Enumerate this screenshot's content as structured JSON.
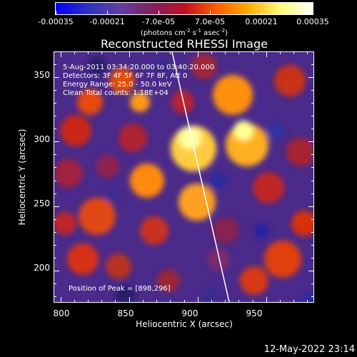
{
  "colorbar": {
    "tick_labels": [
      "-0.00035",
      "-0.00021",
      "-7.0e-05",
      "7.0e-05",
      "0.00021",
      "0.00035"
    ],
    "units_prefix": "(photons cm",
    "units_sup1": "-2",
    "units_mid1": " s",
    "units_sup2": "-1",
    "units_mid2": " asec",
    "units_sup3": "-2",
    "units_suffix": ")",
    "colors": [
      "#0000ff",
      "#3030c0",
      "#6040a0",
      "#802060",
      "#c01020",
      "#ff6000",
      "#ffb000",
      "#ffff80",
      "#ffffff"
    ]
  },
  "title": "Reconstructed RHESSI Image",
  "annotations": {
    "time_range": "5-Aug-2011 03:34:20.000 to 03:40:20.000",
    "detectors": "Detectors: 3F 4F 5F 6F 7F 8F, Att 0",
    "energy": "Energy Range: 25.0 - 50.0 keV",
    "clean": "Clean     Total counts: 1.18E+04",
    "peak": "Position of Peak = [898,296]"
  },
  "axes": {
    "xlabel": "Heliocentric X (arcsec)",
    "ylabel": "Heliocentric Y (arcsec)",
    "xticks": [
      "800",
      "850",
      "900",
      "950"
    ],
    "yticks": [
      "350",
      "300",
      "250",
      "200"
    ],
    "xvals": [
      800,
      850,
      900,
      950
    ],
    "yvals": [
      350,
      300,
      250,
      200
    ],
    "xlim": [
      795,
      985
    ],
    "ylim": [
      175,
      370
    ]
  },
  "timestamp": "12-May-2022 23:14"
}
